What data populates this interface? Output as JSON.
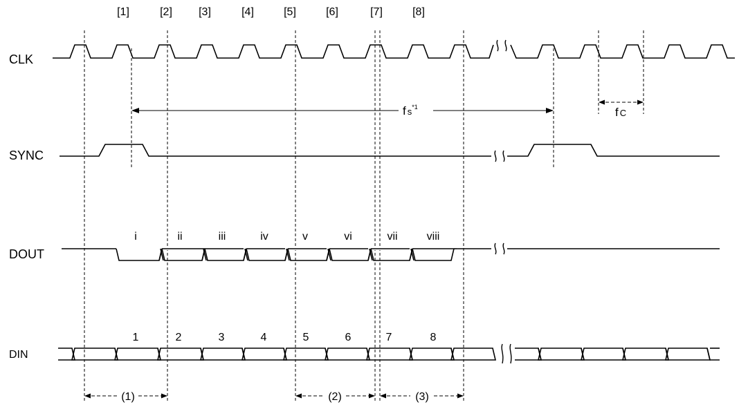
{
  "signals": {
    "clk": "CLK",
    "sync": "SYNC",
    "dout": "DOUT",
    "din": "DIN"
  },
  "edges": [
    "[1]",
    "[2]",
    "[3]",
    "[4]",
    "[5]",
    "[6]",
    "[7]",
    "[8]"
  ],
  "dout_bits": [
    "i",
    "ii",
    "iii",
    "iv",
    "v",
    "vi",
    "vii",
    "viii"
  ],
  "din_bits": [
    "1",
    "2",
    "3",
    "4",
    "5",
    "6",
    "7",
    "8"
  ],
  "periods": {
    "fs_label": "f",
    "fs_sub": "s",
    "fs_sup": "*1",
    "fc_label": "f",
    "fc_sub": "C"
  },
  "intervals": [
    "(1)",
    "(2)",
    "(3)"
  ]
}
